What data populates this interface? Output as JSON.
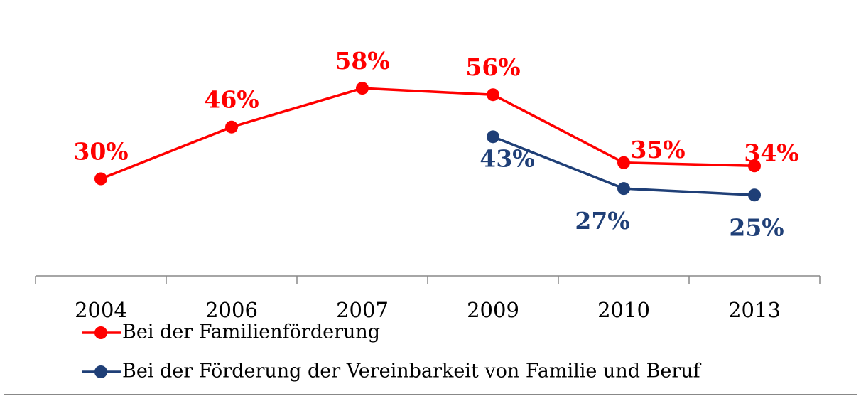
{
  "chart_data": {
    "type": "line",
    "categories": [
      "2004",
      "2006",
      "2007",
      "2009",
      "2010",
      "2013"
    ],
    "series": [
      {
        "name": "Bei der Familienförderung",
        "color": "#ff0000",
        "values": [
          30,
          46,
          58,
          56,
          35,
          34
        ],
        "value_labels": [
          "30%",
          "46%",
          "58%",
          "56%",
          "35%",
          "34%"
        ]
      },
      {
        "name": "Bei der Förderung der Vereinbarkeit von Familie und Beruf",
        "color": "#1f3f77",
        "values": [
          null,
          null,
          null,
          43,
          27,
          25
        ],
        "value_labels": [
          null,
          null,
          null,
          "43%",
          "27%",
          "25%"
        ]
      }
    ],
    "ylim": [
      0,
      80
    ],
    "legend": "bottom"
  }
}
